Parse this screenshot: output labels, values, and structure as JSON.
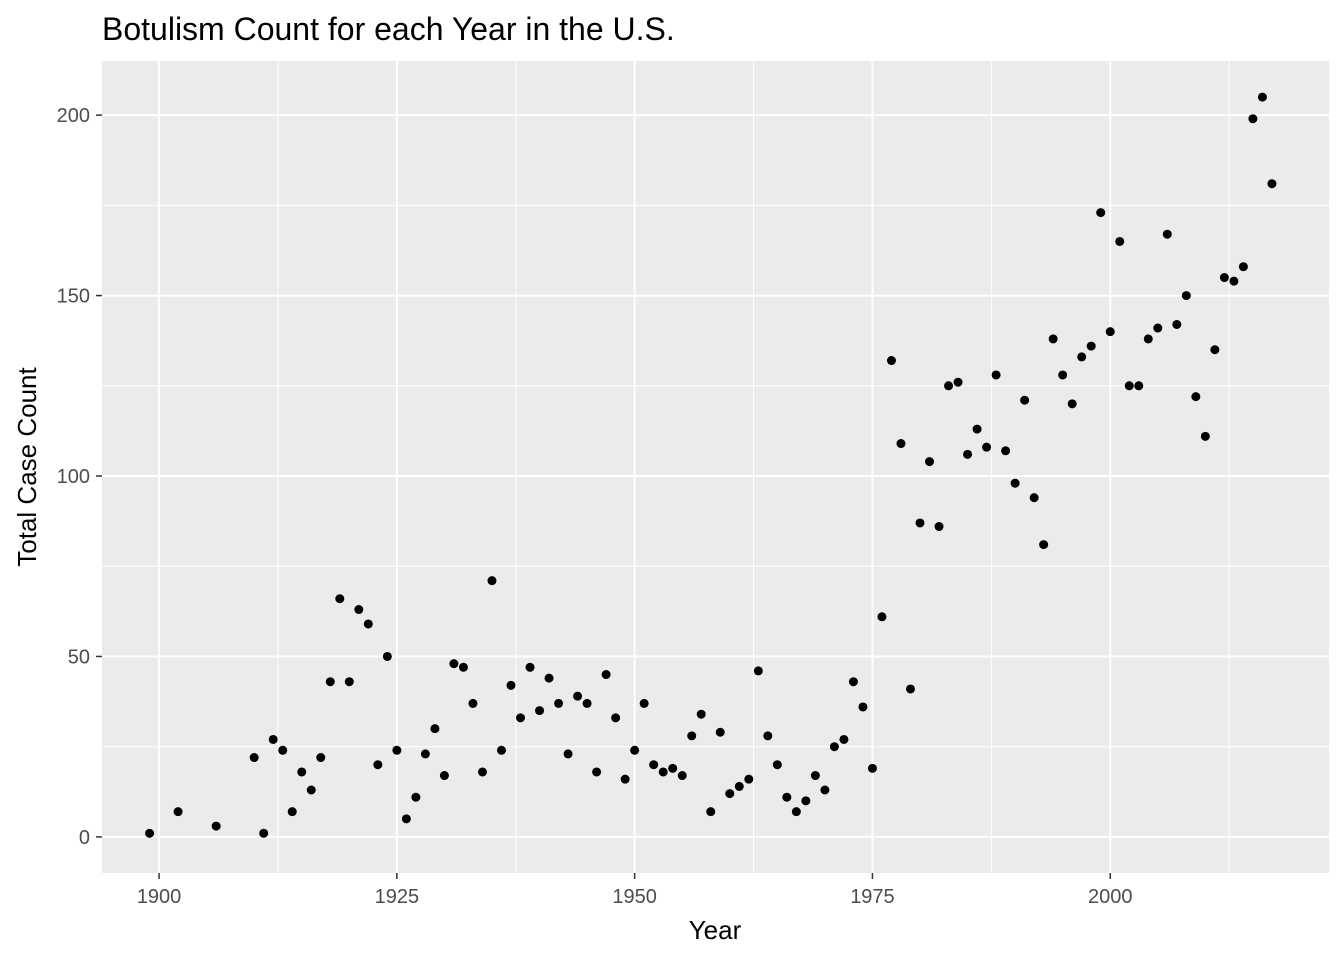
{
  "chart_data": {
    "type": "scatter",
    "title": "Botulism Count for each Year in the U.S.",
    "xlabel": "Year",
    "ylabel": "Total Case Count",
    "xlim": [
      1894,
      2023
    ],
    "ylim": [
      -10,
      215
    ],
    "x_ticks": [
      1900,
      1925,
      1950,
      1975,
      2000
    ],
    "y_ticks": [
      0,
      50,
      100,
      150,
      200
    ],
    "x_tick_labels": [
      "1900",
      "1925",
      "1950",
      "1975",
      "2000"
    ],
    "y_tick_labels": [
      "0",
      "50",
      "100",
      "150",
      "200"
    ],
    "grid": true,
    "panel_background": "#ebebeb",
    "gridline_color": "#ffffff",
    "point_color": "#000000",
    "points": [
      [
        1899,
        1
      ],
      [
        1902,
        7
      ],
      [
        1906,
        3
      ],
      [
        1910,
        22
      ],
      [
        1911,
        1
      ],
      [
        1912,
        27
      ],
      [
        1913,
        24
      ],
      [
        1914,
        7
      ],
      [
        1915,
        18
      ],
      [
        1916,
        13
      ],
      [
        1917,
        22
      ],
      [
        1918,
        43
      ],
      [
        1919,
        66
      ],
      [
        1920,
        43
      ],
      [
        1921,
        63
      ],
      [
        1922,
        59
      ],
      [
        1923,
        20
      ],
      [
        1924,
        50
      ],
      [
        1925,
        24
      ],
      [
        1926,
        5
      ],
      [
        1927,
        11
      ],
      [
        1928,
        23
      ],
      [
        1929,
        30
      ],
      [
        1930,
        17
      ],
      [
        1931,
        48
      ],
      [
        1932,
        47
      ],
      [
        1933,
        37
      ],
      [
        1934,
        18
      ],
      [
        1935,
        71
      ],
      [
        1936,
        24
      ],
      [
        1937,
        42
      ],
      [
        1938,
        33
      ],
      [
        1939,
        47
      ],
      [
        1940,
        35
      ],
      [
        1941,
        44
      ],
      [
        1942,
        37
      ],
      [
        1943,
        23
      ],
      [
        1944,
        39
      ],
      [
        1945,
        37
      ],
      [
        1946,
        18
      ],
      [
        1947,
        45
      ],
      [
        1948,
        33
      ],
      [
        1949,
        16
      ],
      [
        1950,
        24
      ],
      [
        1951,
        37
      ],
      [
        1952,
        20
      ],
      [
        1953,
        18
      ],
      [
        1954,
        19
      ],
      [
        1955,
        17
      ],
      [
        1956,
        28
      ],
      [
        1957,
        34
      ],
      [
        1958,
        7
      ],
      [
        1959,
        29
      ],
      [
        1960,
        12
      ],
      [
        1961,
        14
      ],
      [
        1962,
        16
      ],
      [
        1963,
        46
      ],
      [
        1964,
        28
      ],
      [
        1965,
        20
      ],
      [
        1966,
        11
      ],
      [
        1967,
        7
      ],
      [
        1968,
        10
      ],
      [
        1969,
        17
      ],
      [
        1970,
        13
      ],
      [
        1971,
        25
      ],
      [
        1972,
        27
      ],
      [
        1973,
        43
      ],
      [
        1974,
        36
      ],
      [
        1975,
        19
      ],
      [
        1976,
        61
      ],
      [
        1977,
        132
      ],
      [
        1978,
        109
      ],
      [
        1979,
        41
      ],
      [
        1980,
        87
      ],
      [
        1981,
        104
      ],
      [
        1982,
        86
      ],
      [
        1983,
        125
      ],
      [
        1984,
        126
      ],
      [
        1985,
        106
      ],
      [
        1986,
        113
      ],
      [
        1987,
        108
      ],
      [
        1988,
        128
      ],
      [
        1989,
        107
      ],
      [
        1990,
        98
      ],
      [
        1991,
        121
      ],
      [
        1992,
        94
      ],
      [
        1993,
        81
      ],
      [
        1994,
        138
      ],
      [
        1995,
        128
      ],
      [
        1996,
        120
      ],
      [
        1997,
        133
      ],
      [
        1998,
        136
      ],
      [
        1999,
        173
      ],
      [
        2000,
        140
      ],
      [
        2001,
        165
      ],
      [
        2002,
        125
      ],
      [
        2003,
        125
      ],
      [
        2004,
        138
      ],
      [
        2005,
        141
      ],
      [
        2006,
        167
      ],
      [
        2007,
        142
      ],
      [
        2008,
        150
      ],
      [
        2009,
        122
      ],
      [
        2010,
        111
      ],
      [
        2011,
        135
      ],
      [
        2012,
        155
      ],
      [
        2013,
        154
      ],
      [
        2014,
        158
      ],
      [
        2015,
        199
      ],
      [
        2016,
        205
      ],
      [
        2017,
        181
      ]
    ]
  }
}
